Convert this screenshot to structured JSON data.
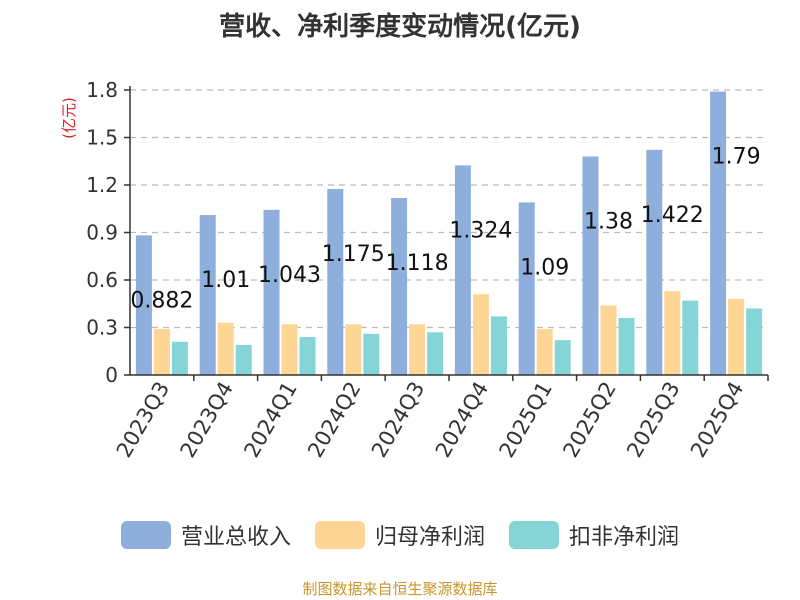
{
  "chart_data": {
    "type": "bar",
    "title": "营收、净利季度变动情况(亿元)",
    "ylabel": "(亿元)",
    "xlabel": "",
    "ylim": [
      0,
      1.8
    ],
    "yticks": [
      "0",
      "0.3",
      "0.6",
      "0.9",
      "1.2",
      "1.5",
      "1.8"
    ],
    "ytick_values": [
      0,
      0.3,
      0.6,
      0.9,
      1.2,
      1.5,
      1.8
    ],
    "grid": true,
    "legend_position": "bottom",
    "categories": [
      "2023Q3",
      "2023Q4",
      "2024Q1",
      "2024Q2",
      "2024Q3",
      "2024Q4",
      "2025Q1",
      "2025Q2",
      "2025Q3",
      "2025Q4"
    ],
    "series": [
      {
        "name": "营业总收入",
        "color": "#8eaedb",
        "values": [
          0.882,
          1.01,
          1.043,
          1.175,
          1.118,
          1.324,
          1.09,
          1.38,
          1.422,
          1.79
        ],
        "labels": [
          "0.882",
          "1.01",
          "1.043",
          "1.175",
          "1.118",
          "1.324",
          "1.09",
          "1.38",
          "1.422",
          "1.79"
        ]
      },
      {
        "name": "归母净利润",
        "color": "#fdd696",
        "values": [
          0.29,
          0.33,
          0.32,
          0.32,
          0.32,
          0.51,
          0.29,
          0.44,
          0.53,
          0.48
        ]
      },
      {
        "name": "扣非净利润",
        "color": "#86d5d6",
        "values": [
          0.21,
          0.19,
          0.24,
          0.26,
          0.27,
          0.37,
          0.22,
          0.36,
          0.47,
          0.42
        ]
      }
    ]
  },
  "footer": {
    "source": "制图数据来自恒生聚源数据库"
  }
}
